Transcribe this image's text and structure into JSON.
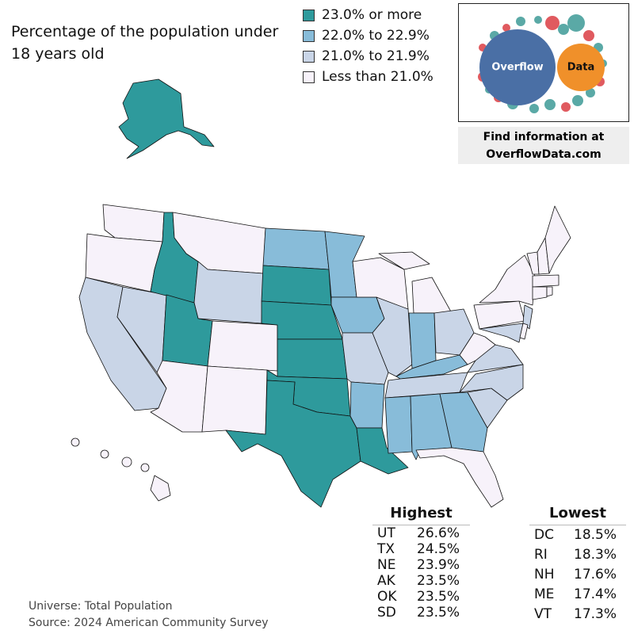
{
  "title": "Percentage of the population under 18 years old",
  "legend": [
    {
      "label": "23.0% or more",
      "color": "#2e9a9c"
    },
    {
      "label": "22.0% to 22.9%",
      "color": "#88bcd9"
    },
    {
      "label": "21.0% to 21.9%",
      "color": "#c9d5e7"
    },
    {
      "label": "Less than 21.0%",
      "color": "#f7f2fa"
    }
  ],
  "logo": {
    "words": [
      "Overflow",
      "Data"
    ]
  },
  "promo": {
    "lines": [
      "Find information at",
      "OverflowData.com"
    ]
  },
  "highest": {
    "title": "Highest",
    "rows": [
      [
        "UT",
        "26.6%"
      ],
      [
        "TX",
        "24.5%"
      ],
      [
        "NE",
        "23.9%"
      ],
      [
        "AK",
        "23.5%"
      ],
      [
        "OK",
        "23.5%"
      ],
      [
        "SD",
        "23.5%"
      ]
    ]
  },
  "lowest": {
    "title": "Lowest",
    "rows": [
      [
        "DC",
        "18.5%"
      ],
      [
        "RI",
        "18.3%"
      ],
      [
        "NH",
        "17.6%"
      ],
      [
        "ME",
        "17.4%"
      ],
      [
        "VT",
        "17.3%"
      ]
    ]
  },
  "footnotes": [
    "Universe: Total Population",
    "Source: 2024 American Community Survey"
  ]
}
